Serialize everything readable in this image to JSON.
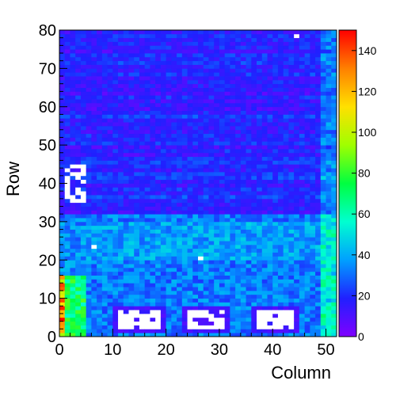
{
  "chart_data": {
    "type": "heatmap",
    "title": "",
    "xlabel": "Column",
    "ylabel": "Row",
    "xlim": [
      0,
      52
    ],
    "ylim": [
      0,
      80
    ],
    "zlim": [
      0,
      150
    ],
    "grid": false,
    "x_ticks": [
      "0",
      "10",
      "20",
      "30",
      "40",
      "50"
    ],
    "y_ticks": [
      "0",
      "10",
      "20",
      "30",
      "40",
      "50",
      "60",
      "70",
      "80"
    ],
    "colorbar_ticks": [
      "0",
      "20",
      "40",
      "60",
      "80",
      "100",
      "120",
      "140"
    ],
    "colorscale": "rainbow",
    "colorscale_stops": [
      "#8000ff",
      "#2020ff",
      "#00a0ff",
      "#00ffd0",
      "#00ff40",
      "#a0ff00",
      "#ffe000",
      "#ff8000",
      "#ff0000"
    ],
    "empty_color": "#ffffff",
    "regions": [
      {
        "name": "upper band (rows 32-80)",
        "mean_value": 18
      },
      {
        "name": "lower band (rows 0-32)",
        "mean_value": 35
      },
      {
        "name": "left edge columns 0-4, rows 0-16",
        "mean_value": 70
      },
      {
        "name": "empty pixels rows 2-6, columns 11-18",
        "mean_value": 0
      },
      {
        "name": "empty pixels rows 2-6, columns 24-30",
        "mean_value": 0
      },
      {
        "name": "empty pixels rows 2-6, columns 37-43",
        "mean_value": 0
      },
      {
        "name": "empty pixels rows 35-44, columns 1-4",
        "mean_value": 0
      }
    ]
  }
}
